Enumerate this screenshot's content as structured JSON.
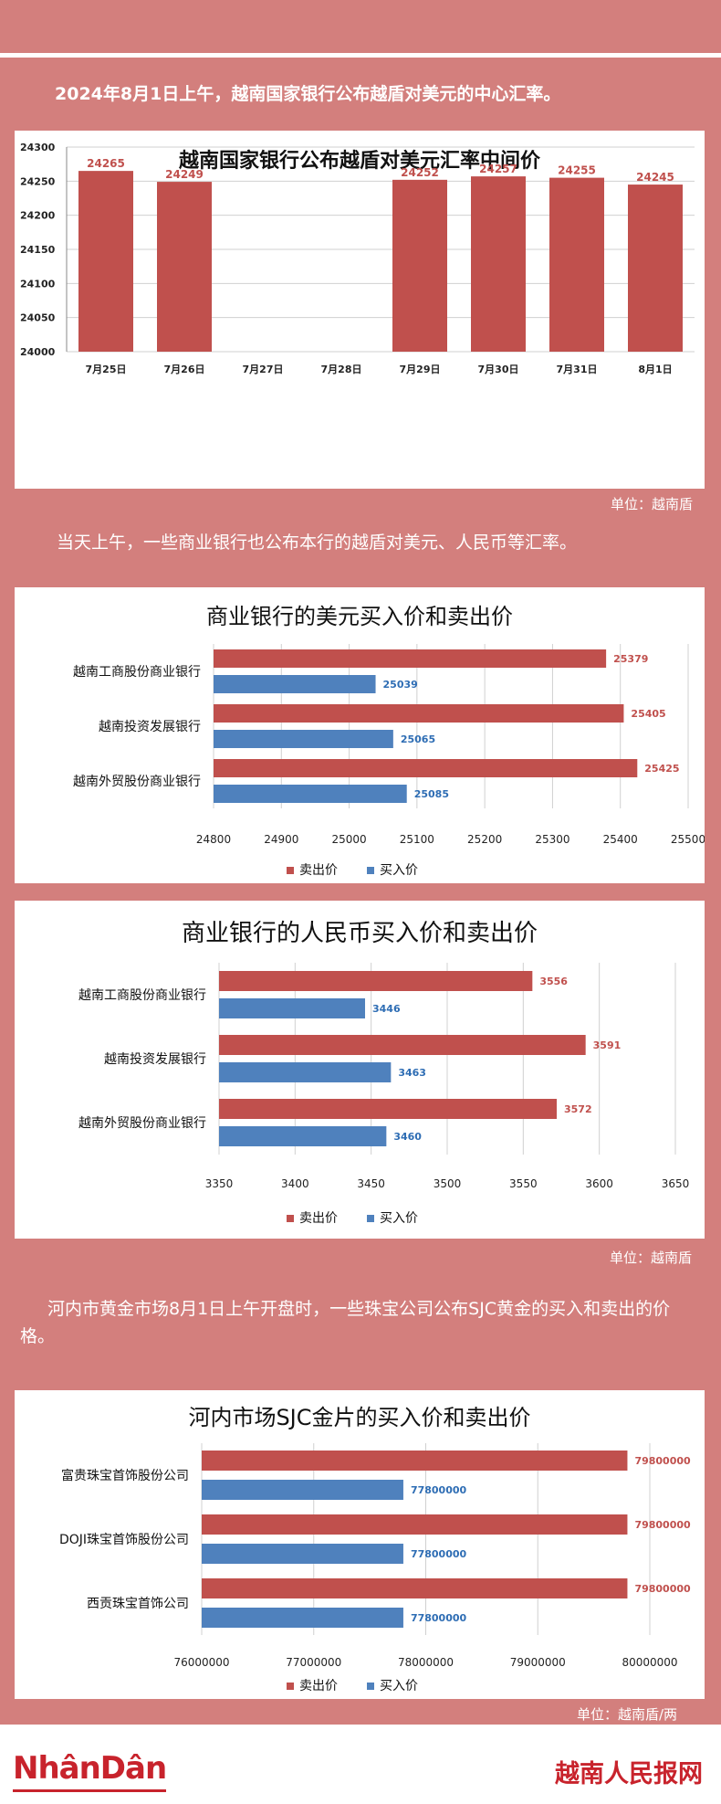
{
  "intro1": "2024年8月1日上午，越南国家银行公布越盾对美元的中心汇率。",
  "intro2": "当天上午，一些商业银行也公布本行的越盾对美元、人民币等汇率。",
  "intro3": "河内市黄金市场8月1日上午开盘时，一些珠宝公司公布SJC黄金的买入和卖出的价格。",
  "unit1": "单位：越南盾",
  "unit2": "单位：越南盾",
  "unit3": "单位：越南盾/两",
  "footer": {
    "logo_left": "NhânDân",
    "logo_right": "越南人民报网"
  },
  "colors": {
    "sell": "#c0504d",
    "buy": "#4f81bd",
    "background": "#d37f7d"
  },
  "chart_data": [
    {
      "type": "bar",
      "title": "越南国家银行公布越盾对美元汇率中间价",
      "categories": [
        "7月25日",
        "7月26日",
        "7月27日",
        "7月28日",
        "7月29日",
        "7月30日",
        "7月31日",
        "8月1日"
      ],
      "values": [
        24265,
        24249,
        null,
        null,
        24252,
        24257,
        24255,
        24245
      ],
      "ylim": [
        24000,
        24300
      ],
      "yticks": [
        24000,
        24050,
        24100,
        24150,
        24200,
        24250,
        24300
      ],
      "grid": true
    },
    {
      "type": "bar",
      "orientation": "horizontal",
      "title": "商业银行的美元买入价和卖出价",
      "categories": [
        "越南工商股份商业银行",
        "越南投资发展银行",
        "越南外贸股份商业银行"
      ],
      "series": [
        {
          "name": "卖出价",
          "values": [
            25379,
            25405,
            25425
          ]
        },
        {
          "name": "买入价",
          "values": [
            25039,
            25065,
            25085
          ]
        }
      ],
      "xlim": [
        24800,
        25500
      ],
      "xticks": [
        24800,
        24900,
        25000,
        25100,
        25200,
        25300,
        25400,
        25500
      ],
      "legend": "bottom",
      "grid": true
    },
    {
      "type": "bar",
      "orientation": "horizontal",
      "title": "商业银行的人民币买入价和卖出价",
      "categories": [
        "越南工商股份商业银行",
        "越南投资发展银行",
        "越南外贸股份商业银行"
      ],
      "series": [
        {
          "name": "卖出价",
          "values": [
            3556,
            3591,
            3572
          ]
        },
        {
          "name": "买入价",
          "values": [
            3446,
            3463,
            3460
          ]
        }
      ],
      "xlim": [
        3350,
        3650
      ],
      "xticks": [
        3350,
        3400,
        3450,
        3500,
        3550,
        3600,
        3650
      ],
      "legend": "bottom",
      "grid": true
    },
    {
      "type": "bar",
      "orientation": "horizontal",
      "title": "河内市场SJC金片的买入价和卖出价",
      "categories": [
        "富贵珠宝首饰股份公司",
        "DOJI珠宝首饰股份公司",
        "西贡珠宝首饰公司"
      ],
      "series": [
        {
          "name": "卖出价",
          "values": [
            79800000,
            79800000,
            79800000
          ]
        },
        {
          "name": "买入价",
          "values": [
            77800000,
            77800000,
            77800000
          ]
        }
      ],
      "xlim": [
        76000000,
        80000000
      ],
      "xticks": [
        76000000,
        77000000,
        78000000,
        79000000,
        80000000
      ],
      "legend": "bottom",
      "grid": true
    }
  ]
}
